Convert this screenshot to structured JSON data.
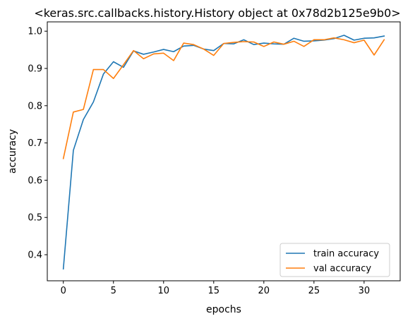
{
  "chart_data": {
    "type": "line",
    "title": "<keras.src.callbacks.history.History object at 0x78d2b125e9b0>",
    "xlabel": "epochs",
    "ylabel": "accuracy",
    "xlim": [
      -1.6,
      33.6
    ],
    "ylim": [
      0.33,
      1.025
    ],
    "xticks": [
      0,
      5,
      10,
      15,
      20,
      25,
      30
    ],
    "yticks": [
      0.4,
      0.5,
      0.6,
      0.7,
      0.8,
      0.9,
      1.0
    ],
    "ytick_labels": [
      "0.4",
      "0.5",
      "0.6",
      "0.7",
      "0.8",
      "0.9",
      "1.0"
    ],
    "grid": false,
    "legend_position": "lower-right",
    "x": [
      0,
      1,
      2,
      3,
      4,
      5,
      6,
      7,
      8,
      9,
      10,
      11,
      12,
      13,
      14,
      15,
      16,
      17,
      18,
      19,
      20,
      21,
      22,
      23,
      24,
      25,
      26,
      27,
      28,
      29,
      30,
      31,
      32
    ],
    "series": [
      {
        "name": "train accuracy",
        "color": "#1f77b4",
        "values": [
          0.362,
          0.68,
          0.763,
          0.81,
          0.885,
          0.918,
          0.903,
          0.947,
          0.938,
          0.944,
          0.951,
          0.945,
          0.96,
          0.962,
          0.952,
          0.948,
          0.967,
          0.966,
          0.977,
          0.964,
          0.968,
          0.966,
          0.965,
          0.981,
          0.973,
          0.974,
          0.976,
          0.98,
          0.989,
          0.976,
          0.981,
          0.982,
          0.987
        ]
      },
      {
        "name": "val accuracy",
        "color": "#ff7f0e",
        "values": [
          0.658,
          0.783,
          0.79,
          0.897,
          0.897,
          0.873,
          0.91,
          0.948,
          0.926,
          0.939,
          0.941,
          0.921,
          0.968,
          0.964,
          0.952,
          0.935,
          0.967,
          0.97,
          0.972,
          0.971,
          0.959,
          0.971,
          0.965,
          0.973,
          0.959,
          0.977,
          0.977,
          0.982,
          0.977,
          0.969,
          0.976,
          0.936,
          0.977
        ]
      }
    ]
  }
}
